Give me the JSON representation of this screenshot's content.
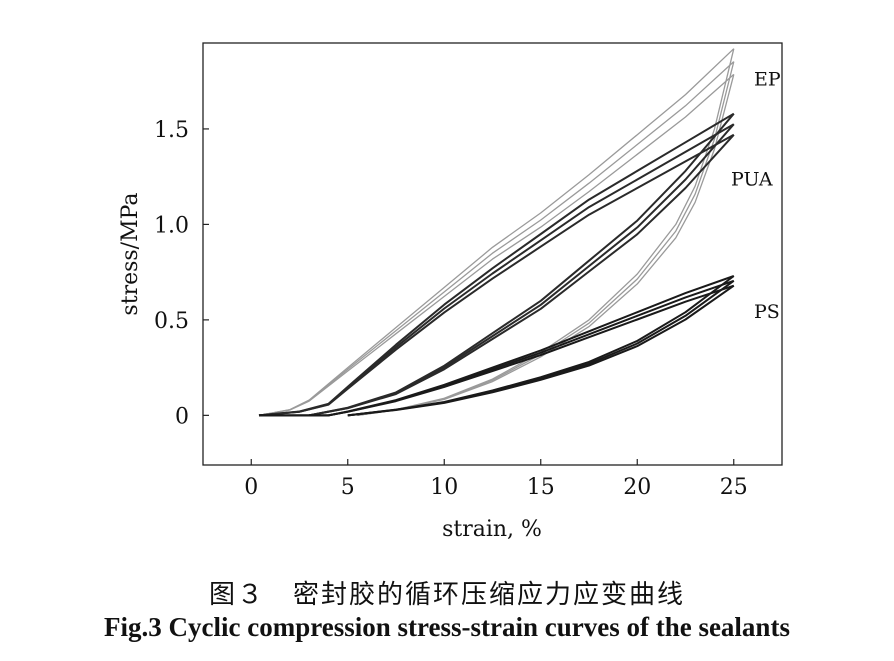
{
  "caption": {
    "cn": "图３　密封胶的循环压缩应力应变曲线",
    "en": "Fig.3 Cyclic compression stress-strain curves of the sealants"
  },
  "chart_data": {
    "type": "line",
    "title": "",
    "xlabel": "strain, %",
    "ylabel": "stress/MPa",
    "xlim": [
      -2.5,
      27.5
    ],
    "ylim": [
      -0.26,
      1.95
    ],
    "xticks": [
      0,
      5,
      10,
      15,
      20,
      25
    ],
    "xtick_labels": [
      "0",
      "5",
      "10",
      "15",
      "20",
      "25"
    ],
    "yticks": [
      0,
      0.5,
      1.0,
      1.5
    ],
    "ytick_labels": [
      "0",
      "0.5",
      "1.0",
      "1.5"
    ],
    "grid": false,
    "legend": "none",
    "series": [
      {
        "name": "EP",
        "color": "#9a9a9a",
        "loading": {
          "x": [
            0.4,
            2.0,
            3.0,
            5.0,
            7.5,
            10.0,
            12.5,
            15.0,
            17.5,
            20.0,
            22.5,
            25.0
          ],
          "y": [
            0.0,
            0.03,
            0.08,
            0.25,
            0.46,
            0.67,
            0.88,
            1.06,
            1.26,
            1.47,
            1.68,
            1.92
          ]
        },
        "unloading": {
          "x": [
            25.0,
            24.0,
            23.0,
            22.0,
            20.0,
            17.5,
            15.0,
            12.5,
            10.0,
            7.5,
            5.5
          ],
          "y": [
            1.92,
            1.5,
            1.2,
            1.0,
            0.74,
            0.5,
            0.33,
            0.19,
            0.09,
            0.03,
            0.0
          ]
        }
      },
      {
        "name": "PUA",
        "color": "#2a2a2a",
        "loading": {
          "x": [
            0.4,
            2.5,
            4.0,
            5.0,
            7.5,
            10.0,
            12.5,
            15.0,
            17.5,
            20.0,
            22.5,
            25.0
          ],
          "y": [
            0.0,
            0.02,
            0.06,
            0.15,
            0.37,
            0.58,
            0.77,
            0.95,
            1.13,
            1.28,
            1.43,
            1.58
          ]
        },
        "unloading": {
          "x": [
            25.0,
            22.5,
            20.0,
            17.5,
            15.0,
            12.5,
            10.0,
            7.5,
            5.0,
            3.0
          ],
          "y": [
            1.58,
            1.28,
            1.02,
            0.81,
            0.6,
            0.43,
            0.26,
            0.12,
            0.04,
            0.0
          ]
        }
      },
      {
        "name": "PS",
        "color": "#1a1a1a",
        "loading": {
          "x": [
            0.4,
            4.0,
            5.0,
            7.5,
            10.0,
            12.5,
            15.0,
            17.5,
            20.0,
            22.5,
            25.0
          ],
          "y": [
            0.0,
            0.0,
            0.02,
            0.08,
            0.16,
            0.25,
            0.34,
            0.44,
            0.54,
            0.64,
            0.73
          ]
        },
        "unloading": {
          "x": [
            25.0,
            22.5,
            20.0,
            17.5,
            15.0,
            12.5,
            10.0,
            7.5,
            5.0
          ],
          "y": [
            0.73,
            0.54,
            0.39,
            0.28,
            0.2,
            0.13,
            0.07,
            0.03,
            0.0
          ]
        }
      }
    ]
  }
}
